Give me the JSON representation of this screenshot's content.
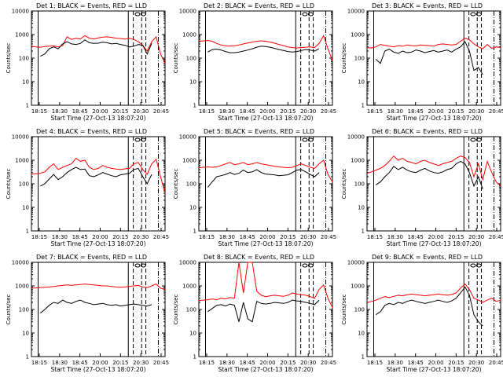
{
  "chart_data": {
    "type": "line",
    "yscale": "log",
    "ylim": [
      1,
      10000
    ],
    "xlim_minutes": [
      0,
      160
    ],
    "xtick_labels": [
      "18:15",
      "18:30",
      "18:45",
      "20:00",
      "20:15",
      "20:30",
      "20:45"
    ],
    "ytick_labels": [
      "1",
      "10",
      "100",
      "1000",
      "10000"
    ],
    "ylabel": "Counts/sec",
    "xlabel": "Start Time (27-Oct-13 18:07:20)",
    "grid": false,
    "series_colors": {
      "events": "#000000",
      "lld": "#ff0000"
    },
    "panels": [
      {
        "title": "Det 1: BLACK = Events, RED = LLD",
        "lld": [
          320,
          300,
          290,
          310,
          320,
          330,
          300,
          340,
          800,
          620,
          700,
          650,
          900,
          700,
          650,
          720,
          780,
          800,
          760,
          700,
          680,
          640,
          700,
          620,
          500,
          350,
          200,
          500,
          800,
          150,
          60
        ],
        "events": [
          null,
          null,
          120,
          150,
          250,
          300,
          250,
          400,
          500,
          400,
          380,
          420,
          600,
          450,
          420,
          430,
          480,
          450,
          400,
          420,
          380,
          350,
          300,
          320,
          380,
          350,
          150,
          420,
          null,
          null,
          null
        ]
      },
      {
        "title": "Det 2: BLACK = Events, RED = LLD",
        "lld": [
          520,
          540,
          560,
          520,
          420,
          360,
          330,
          320,
          330,
          360,
          400,
          440,
          480,
          520,
          540,
          520,
          480,
          430,
          380,
          340,
          300,
          280,
          270,
          280,
          290,
          300,
          280,
          420,
          900,
          250,
          80
        ],
        "events": [
          null,
          null,
          180,
          230,
          240,
          220,
          190,
          170,
          170,
          180,
          200,
          220,
          250,
          290,
          320,
          310,
          290,
          260,
          230,
          210,
          190,
          180,
          190,
          210,
          230,
          220,
          200,
          250,
          null,
          null,
          null
        ]
      },
      {
        "title": "Det 3: BLACK = Events, RED = LLD",
        "lld": [
          280,
          270,
          300,
          380,
          350,
          320,
          300,
          340,
          320,
          360,
          340,
          330,
          360,
          350,
          340,
          320,
          380,
          400,
          380,
          360,
          380,
          520,
          700,
          600,
          400,
          300,
          250,
          380,
          260,
          300,
          280
        ],
        "events": [
          null,
          null,
          90,
          60,
          200,
          240,
          180,
          160,
          200,
          170,
          180,
          220,
          200,
          170,
          190,
          210,
          180,
          200,
          220,
          180,
          240,
          300,
          500,
          200,
          30,
          40,
          20,
          null,
          null,
          null,
          null
        ]
      },
      {
        "title": "Det 4: BLACK = Events, RED = LLD",
        "lld": [
          260,
          270,
          280,
          320,
          500,
          700,
          400,
          500,
          600,
          700,
          1200,
          900,
          1000,
          500,
          400,
          450,
          600,
          500,
          450,
          420,
          400,
          430,
          450,
          700,
          800,
          400,
          250,
          700,
          1100,
          200,
          40
        ],
        "events": [
          null,
          null,
          80,
          100,
          160,
          250,
          150,
          200,
          300,
          400,
          500,
          400,
          420,
          220,
          200,
          240,
          300,
          260,
          220,
          200,
          240,
          260,
          280,
          400,
          450,
          200,
          100,
          250,
          null,
          null,
          null
        ]
      },
      {
        "title": "Det 5: BLACK = Events, RED = LLD",
        "lld": [
          480,
          500,
          520,
          500,
          520,
          600,
          700,
          800,
          650,
          700,
          800,
          650,
          700,
          800,
          700,
          650,
          600,
          550,
          520,
          500,
          480,
          500,
          600,
          700,
          600,
          500,
          450,
          700,
          1000,
          250,
          120
        ],
        "events": [
          null,
          null,
          70,
          120,
          200,
          220,
          250,
          300,
          250,
          280,
          380,
          300,
          320,
          400,
          300,
          260,
          250,
          240,
          220,
          230,
          240,
          300,
          380,
          400,
          320,
          250,
          200,
          300,
          null,
          null,
          null
        ]
      },
      {
        "title": "Det 6: BLACK = Events, RED = LLD",
        "lld": [
          280,
          320,
          380,
          450,
          600,
          900,
          1500,
          1000,
          1200,
          900,
          800,
          700,
          900,
          1000,
          800,
          700,
          600,
          700,
          800,
          900,
          1200,
          1500,
          1300,
          800,
          200,
          700,
          150,
          900,
          300,
          120,
          80
        ],
        "events": [
          null,
          null,
          90,
          120,
          200,
          300,
          550,
          400,
          500,
          380,
          320,
          300,
          380,
          450,
          350,
          300,
          280,
          320,
          400,
          450,
          700,
          900,
          700,
          300,
          80,
          200,
          60,
          null,
          null,
          null,
          null
        ]
      },
      {
        "title": "Det 7: BLACK = Events, RED = LLD",
        "lld": [
          800,
          820,
          850,
          880,
          900,
          950,
          1000,
          1050,
          1100,
          1050,
          1100,
          1150,
          1200,
          1150,
          1100,
          1050,
          1000,
          1000,
          950,
          900,
          880,
          900,
          950,
          1000,
          1050,
          900,
          850,
          1000,
          1200,
          800,
          700
        ],
        "events": [
          null,
          null,
          70,
          100,
          150,
          200,
          180,
          250,
          200,
          180,
          220,
          250,
          200,
          180,
          160,
          170,
          180,
          160,
          150,
          160,
          140,
          150,
          160,
          170,
          160,
          150,
          140,
          160,
          null,
          null,
          null
        ]
      },
      {
        "title": "Det 8: BLACK = Events, RED = LLD",
        "lld": [
          240,
          250,
          260,
          280,
          260,
          300,
          280,
          320,
          300,
          10000,
          500,
          10000,
          10000,
          600,
          400,
          350,
          380,
          400,
          380,
          360,
          400,
          500,
          450,
          420,
          400,
          350,
          300,
          700,
          1100,
          300,
          120
        ],
        "events": [
          null,
          null,
          80,
          110,
          150,
          160,
          140,
          170,
          150,
          30,
          200,
          40,
          30,
          220,
          180,
          170,
          180,
          200,
          190,
          180,
          200,
          250,
          230,
          220,
          200,
          180,
          160,
          250,
          null,
          null,
          null
        ]
      },
      {
        "title": "Det 9: BLACK = Events, RED = LLD",
        "lld": [
          200,
          220,
          250,
          300,
          350,
          320,
          360,
          400,
          380,
          420,
          450,
          420,
          400,
          380,
          400,
          420,
          450,
          420,
          400,
          430,
          500,
          800,
          1200,
          700,
          300,
          250,
          200,
          250,
          300,
          220,
          250
        ],
        "events": [
          null,
          null,
          60,
          80,
          150,
          180,
          160,
          200,
          180,
          220,
          250,
          220,
          200,
          180,
          200,
          220,
          250,
          220,
          200,
          230,
          300,
          500,
          900,
          400,
          60,
          30,
          20,
          null,
          null,
          null,
          null
        ]
      }
    ]
  }
}
